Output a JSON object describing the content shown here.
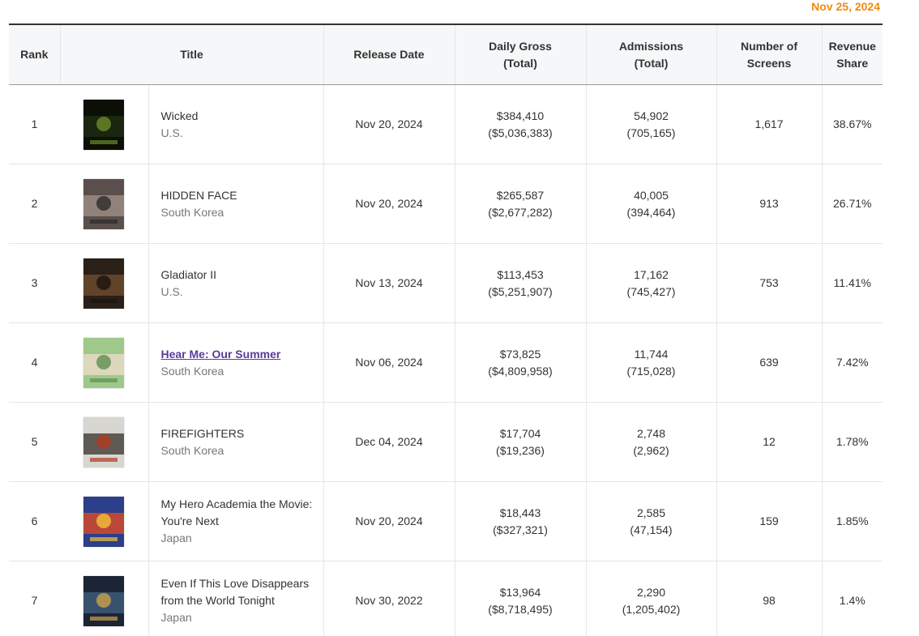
{
  "date_label": "Nov 25, 2024",
  "headers": {
    "rank": "Rank",
    "title": "Title",
    "release_date": "Release Date",
    "daily_gross_line1": "Daily Gross",
    "daily_gross_line2": "(Total)",
    "admissions_line1": "Admissions",
    "admissions_line2": "(Total)",
    "screens": "Number of Screens",
    "share_line1": "Revenue",
    "share_line2": "Share"
  },
  "rows": [
    {
      "rank": "1",
      "title": "Wicked",
      "title_is_link": false,
      "country": "U.S.",
      "release_date": "Nov 20, 2024",
      "gross_daily": "$384,410",
      "gross_total": "($5,036,383)",
      "admissions_daily": "54,902",
      "admissions_total": "(705,165)",
      "screens": "1,617",
      "share": "38.67%",
      "poster_colors": [
        "#0b0f05",
        "#1d2a10",
        "#6a8a2a"
      ]
    },
    {
      "rank": "2",
      "title": "HIDDEN FACE",
      "title_is_link": false,
      "country": "South Korea",
      "release_date": "Nov 20, 2024",
      "gross_daily": "$265,587",
      "gross_total": "($2,677,282)",
      "admissions_daily": "40,005",
      "admissions_total": "(394,464)",
      "screens": "913",
      "share": "26.71%",
      "poster_colors": [
        "#5a4f4c",
        "#9a8a84",
        "#2e2a2a"
      ]
    },
    {
      "rank": "3",
      "title": "Gladiator II",
      "title_is_link": false,
      "country": "U.S.",
      "release_date": "Nov 13, 2024",
      "gross_daily": "$113,453",
      "gross_total": "($5,251,907)",
      "admissions_daily": "17,162",
      "admissions_total": "(745,427)",
      "screens": "753",
      "share": "11.41%",
      "poster_colors": [
        "#2a2018",
        "#6b4a2e",
        "#1a1410"
      ]
    },
    {
      "rank": "4",
      "title": "Hear Me: Our Summer",
      "title_is_link": true,
      "country": "South Korea",
      "release_date": "Nov 06, 2024",
      "gross_daily": "$73,825",
      "gross_total": "($4,809,958)",
      "admissions_daily": "11,744",
      "admissions_total": "(715,028)",
      "screens": "639",
      "share": "7.42%",
      "poster_colors": [
        "#9fc98a",
        "#e7d9c4",
        "#5f8e54"
      ]
    },
    {
      "rank": "5",
      "title": "FIREFIGHTERS",
      "title_is_link": false,
      "country": "South Korea",
      "release_date": "Dec 04, 2024",
      "gross_daily": "$17,704",
      "gross_total": "($19,236)",
      "admissions_daily": "2,748",
      "admissions_total": "(2,962)",
      "screens": "12",
      "share": "1.78%",
      "poster_colors": [
        "#d8d6d0",
        "#4a4440",
        "#b03a1e"
      ]
    },
    {
      "rank": "6",
      "title": "My Hero Academia the Movie: You're Next",
      "title_is_link": false,
      "country": "Japan",
      "release_date": "Nov 20, 2024",
      "gross_daily": "$18,443",
      "gross_total": "($327,321)",
      "admissions_daily": "2,585",
      "admissions_total": "(47,154)",
      "screens": "159",
      "share": "1.85%",
      "poster_colors": [
        "#2b3f8a",
        "#d24a2a",
        "#f2c23a"
      ]
    },
    {
      "rank": "7",
      "title": "Even If This Love Disappears from the World Tonight",
      "title_is_link": false,
      "country": "Japan",
      "release_date": "Nov 30, 2022",
      "gross_daily": "$13,964",
      "gross_total": "($8,718,495)",
      "admissions_daily": "2,290",
      "admissions_total": "(1,205,402)",
      "screens": "98",
      "share": "1.4%",
      "poster_colors": [
        "#1b2536",
        "#3d5a78",
        "#c9a24a"
      ]
    }
  ]
}
